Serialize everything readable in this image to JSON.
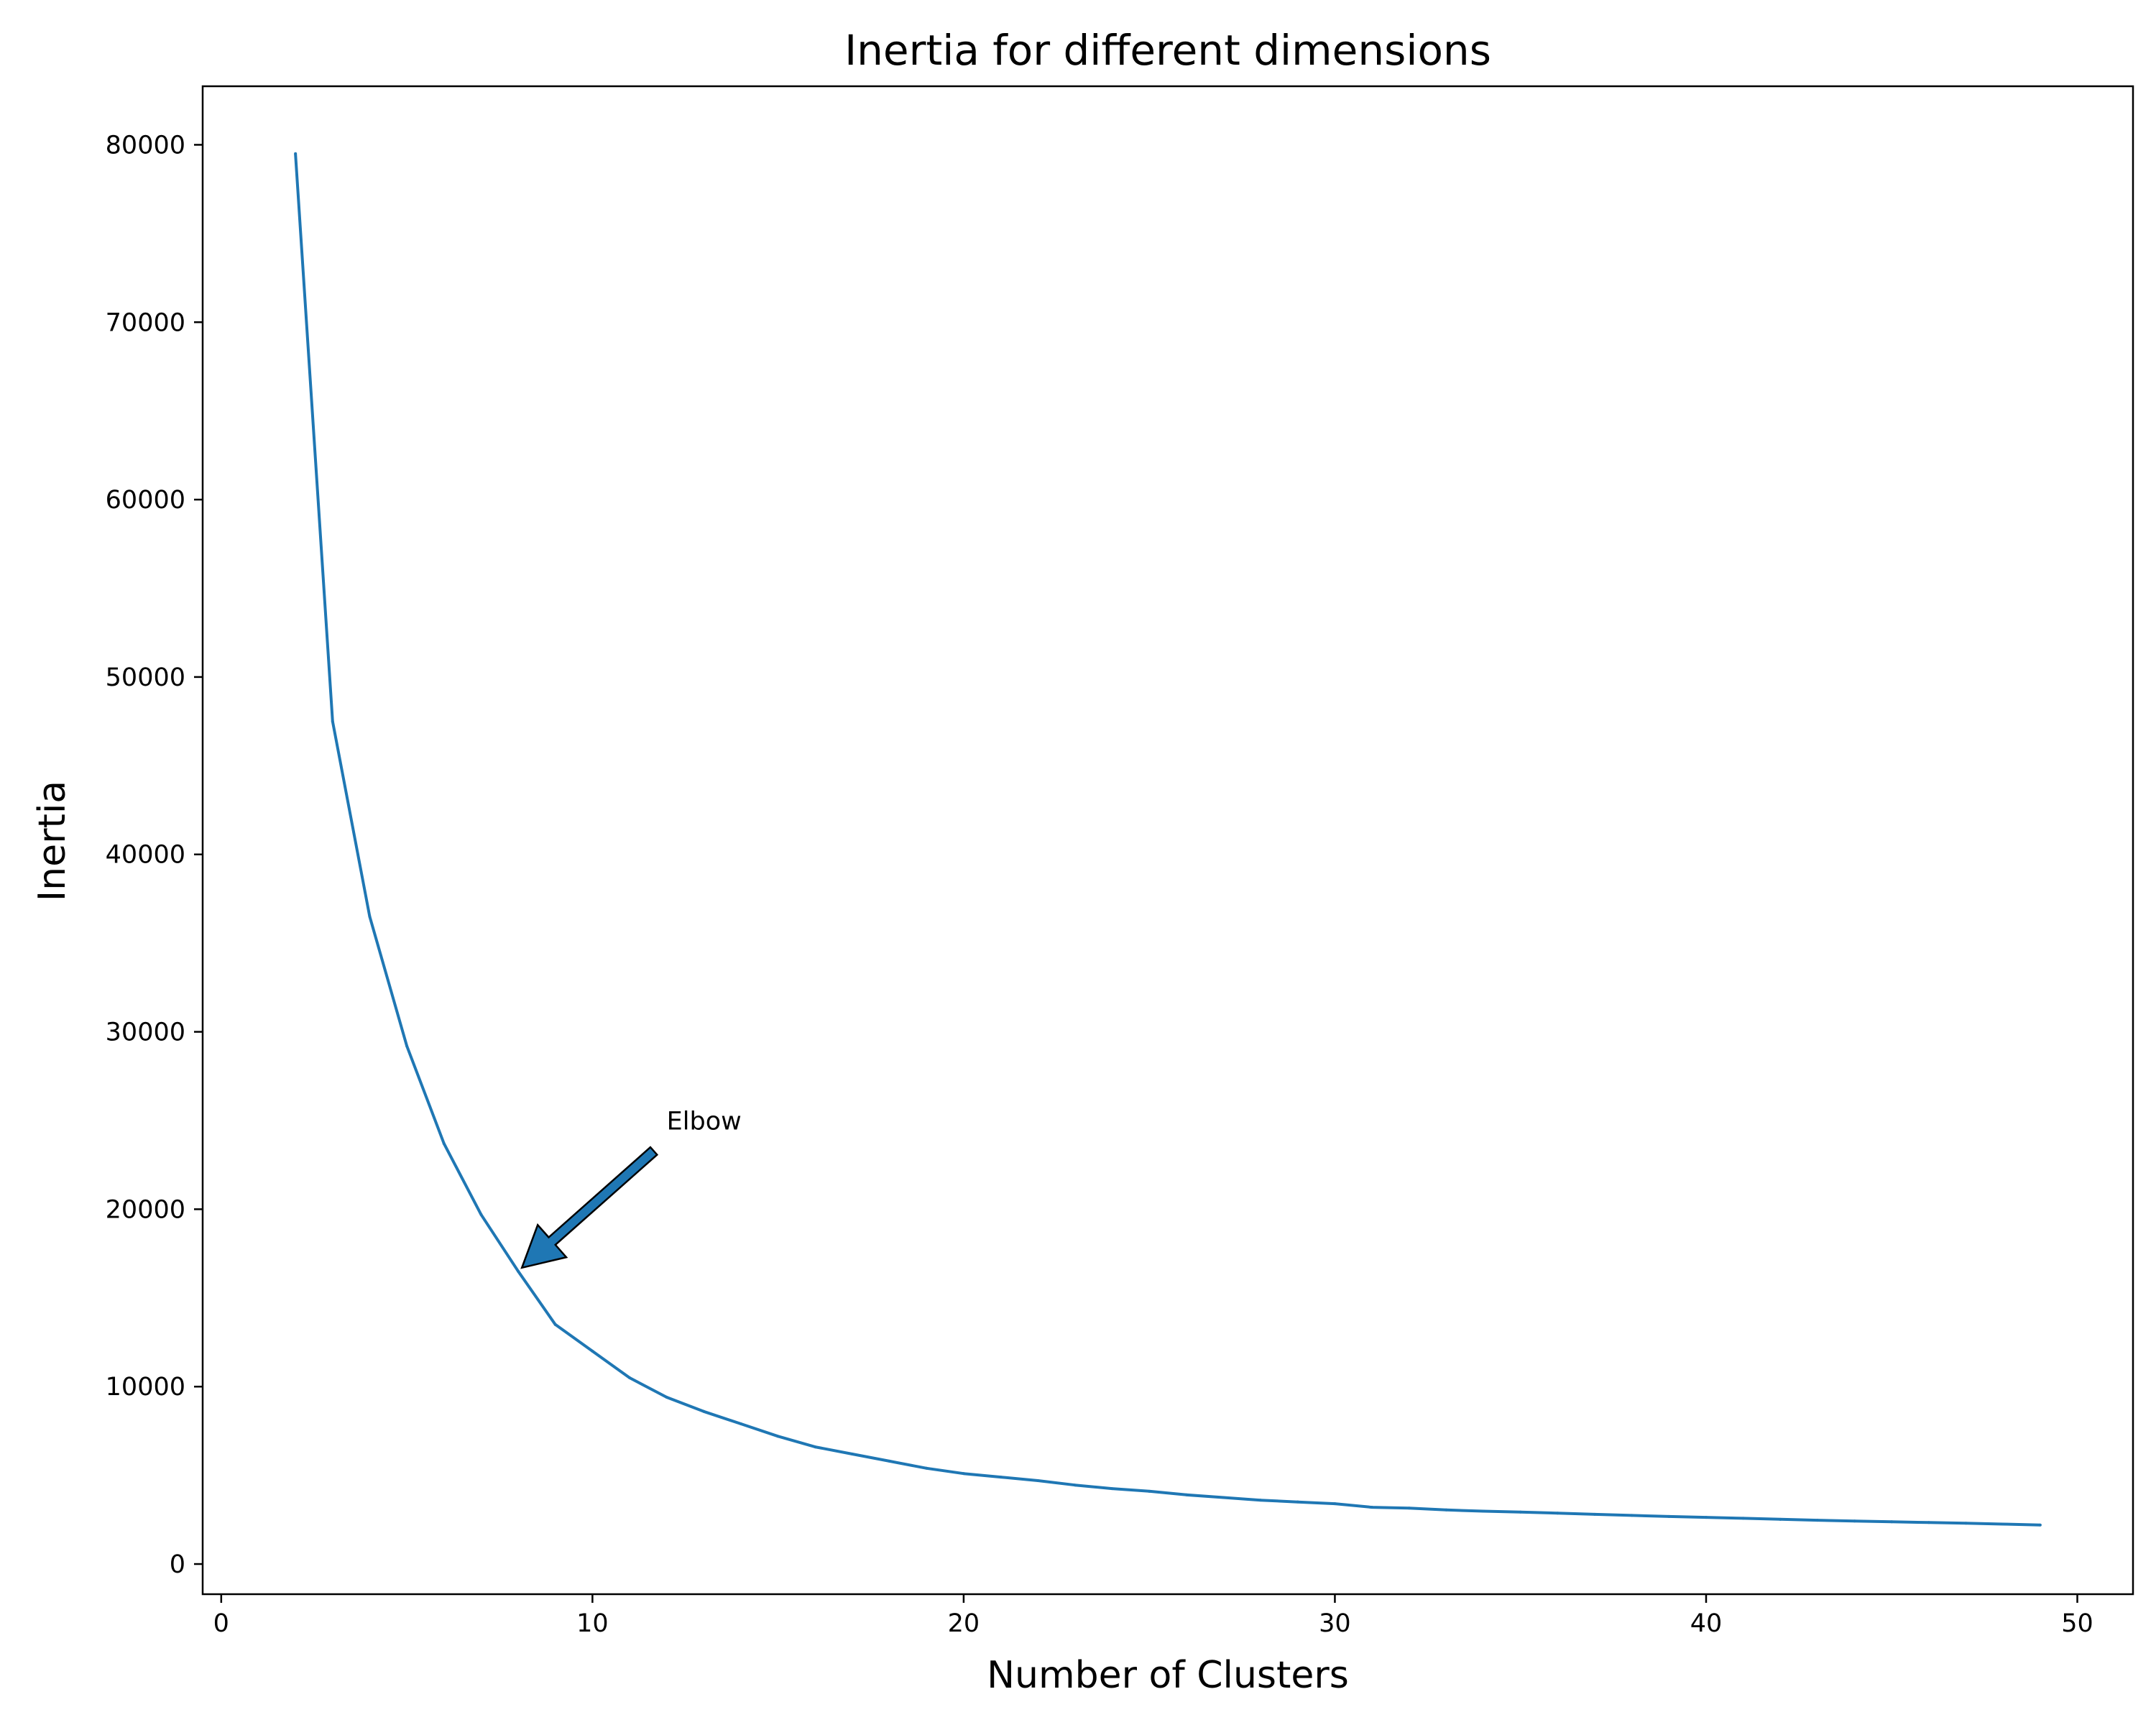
{
  "chart_data": {
    "type": "line",
    "title": "Inertia for different dimensions",
    "xlabel": "Number of Clusters",
    "ylabel": "Inertia",
    "xlim": [
      -0.5,
      51.5
    ],
    "ylim": [
      -1700,
      83300
    ],
    "xticks": [
      0,
      10,
      20,
      30,
      40,
      50
    ],
    "yticks": [
      0,
      10000,
      20000,
      30000,
      40000,
      50000,
      60000,
      70000,
      80000
    ],
    "grid": false,
    "series": [
      {
        "color": "#1f77b4",
        "x": [
          2,
          3,
          4,
          5,
          6,
          7,
          8,
          9,
          10,
          11,
          12,
          13,
          14,
          15,
          16,
          17,
          18,
          19,
          20,
          21,
          22,
          23,
          24,
          25,
          26,
          27,
          28,
          29,
          30,
          31,
          32,
          33,
          34,
          35,
          36,
          37,
          38,
          39,
          40,
          41,
          42,
          43,
          44,
          45,
          46,
          47,
          48,
          49
        ],
        "y": [
          79500,
          47500,
          36500,
          29200,
          23700,
          19700,
          16500,
          13500,
          12000,
          10500,
          9400,
          8600,
          7900,
          7200,
          6600,
          6200,
          5800,
          5400,
          5100,
          4900,
          4700,
          4450,
          4250,
          4100,
          3900,
          3750,
          3600,
          3500,
          3400,
          3200,
          3150,
          3050,
          2980,
          2930,
          2870,
          2800,
          2740,
          2680,
          2630,
          2580,
          2520,
          2470,
          2420,
          2380,
          2340,
          2300,
          2250,
          2200
        ]
      }
    ],
    "annotation": {
      "text": "Elbow",
      "x": 8.1,
      "y": 16700,
      "text_x": 12,
      "text_y": 24500,
      "arrow_color": "#1f77b4"
    }
  }
}
